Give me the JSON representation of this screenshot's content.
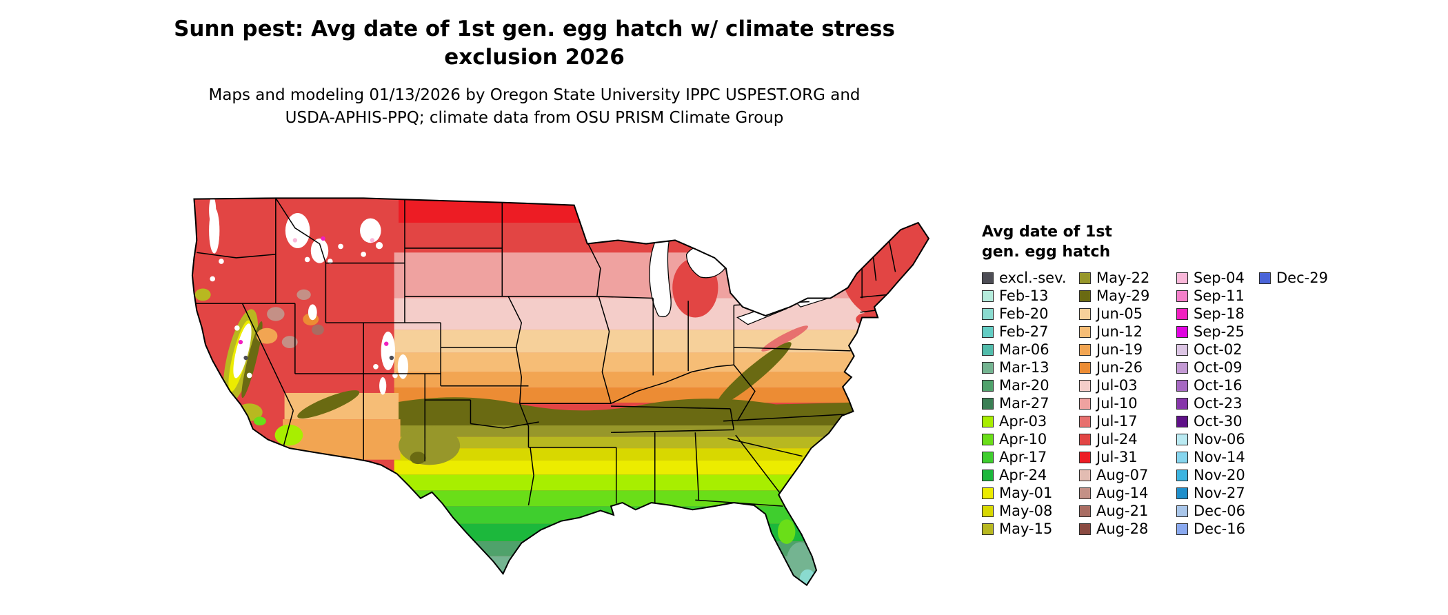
{
  "title": {
    "line1": "Sunn pest: Avg date of 1st gen. egg hatch w/ climate stress",
    "line2": "exclusion 2026"
  },
  "subtitle": {
    "line1": "Maps and modeling 01/13/2026 by Oregon State University IPPC USPEST.ORG and",
    "line2": "USDA-APHIS-PPQ; climate data from OSU PRISM Climate Group"
  },
  "legend": {
    "title_line1": "Avg date of 1st",
    "title_line2": "gen. egg hatch",
    "columns": [
      {
        "entries": [
          {
            "label": "excl.-sev.",
            "color": "#4d4d55"
          },
          {
            "label": "Feb-13",
            "color": "#b5ecdc"
          },
          {
            "label": "Feb-20",
            "color": "#8adbcf"
          },
          {
            "label": "Feb-27",
            "color": "#63cdc4"
          },
          {
            "label": "Mar-06",
            "color": "#52bcab"
          },
          {
            "label": "Mar-13",
            "color": "#74b491"
          },
          {
            "label": "Mar-20",
            "color": "#4fa26b"
          },
          {
            "label": "Mar-27",
            "color": "#3a7f54"
          },
          {
            "label": "Apr-03",
            "color": "#a8ee00"
          },
          {
            "label": "Apr-10",
            "color": "#6ade18"
          },
          {
            "label": "Apr-17",
            "color": "#3fce2e"
          },
          {
            "label": "Apr-24",
            "color": "#1cb83c"
          },
          {
            "label": "May-01",
            "color": "#ecec00"
          },
          {
            "label": "May-08",
            "color": "#d8d800"
          },
          {
            "label": "May-15",
            "color": "#b8b820"
          }
        ]
      },
      {
        "entries": [
          {
            "label": "May-22",
            "color": "#97972a"
          },
          {
            "label": "May-29",
            "color": "#6a6a12"
          },
          {
            "label": "Jun-05",
            "color": "#f6d09a"
          },
          {
            "label": "Jun-12",
            "color": "#f6bd76"
          },
          {
            "label": "Jun-19",
            "color": "#f2a552"
          },
          {
            "label": "Jun-26",
            "color": "#ec8c34"
          },
          {
            "label": "Jul-03",
            "color": "#f4cdc9"
          },
          {
            "label": "Jul-10",
            "color": "#efa2a0"
          },
          {
            "label": "Jul-17",
            "color": "#e7706e"
          },
          {
            "label": "Jul-24",
            "color": "#e24544"
          },
          {
            "label": "Jul-31",
            "color": "#ed1c24"
          },
          {
            "label": "Aug-07",
            "color": "#e2bcb2"
          },
          {
            "label": "Aug-14",
            "color": "#c49086"
          },
          {
            "label": "Aug-21",
            "color": "#a96c62"
          },
          {
            "label": "Aug-28",
            "color": "#8a4a41"
          }
        ]
      },
      {
        "entries": [
          {
            "label": "Sep-04",
            "color": "#f9b7d9"
          },
          {
            "label": "Sep-11",
            "color": "#f47fca"
          },
          {
            "label": "Sep-18",
            "color": "#f11fc0"
          },
          {
            "label": "Sep-25",
            "color": "#e003e0"
          },
          {
            "label": "Oct-02",
            "color": "#dcc5e4"
          },
          {
            "label": "Oct-09",
            "color": "#c399d4"
          },
          {
            "label": "Oct-16",
            "color": "#a668c2"
          },
          {
            "label": "Oct-23",
            "color": "#8636aa"
          },
          {
            "label": "Oct-30",
            "color": "#5f1188"
          },
          {
            "label": "Nov-06",
            "color": "#baeaf2"
          },
          {
            "label": "Nov-14",
            "color": "#86d5ee"
          },
          {
            "label": "Nov-20",
            "color": "#3cb4e0"
          },
          {
            "label": "Nov-27",
            "color": "#1f8fcb"
          },
          {
            "label": "Dec-06",
            "color": "#a9c6ea"
          },
          {
            "label": "Dec-16",
            "color": "#8aa9ef"
          }
        ]
      },
      {
        "entries": [
          {
            "label": "Dec-29",
            "color": "#4a64d8"
          }
        ]
      }
    ]
  },
  "map": {
    "border_color": "#000000",
    "water_color": "#ffffff"
  }
}
